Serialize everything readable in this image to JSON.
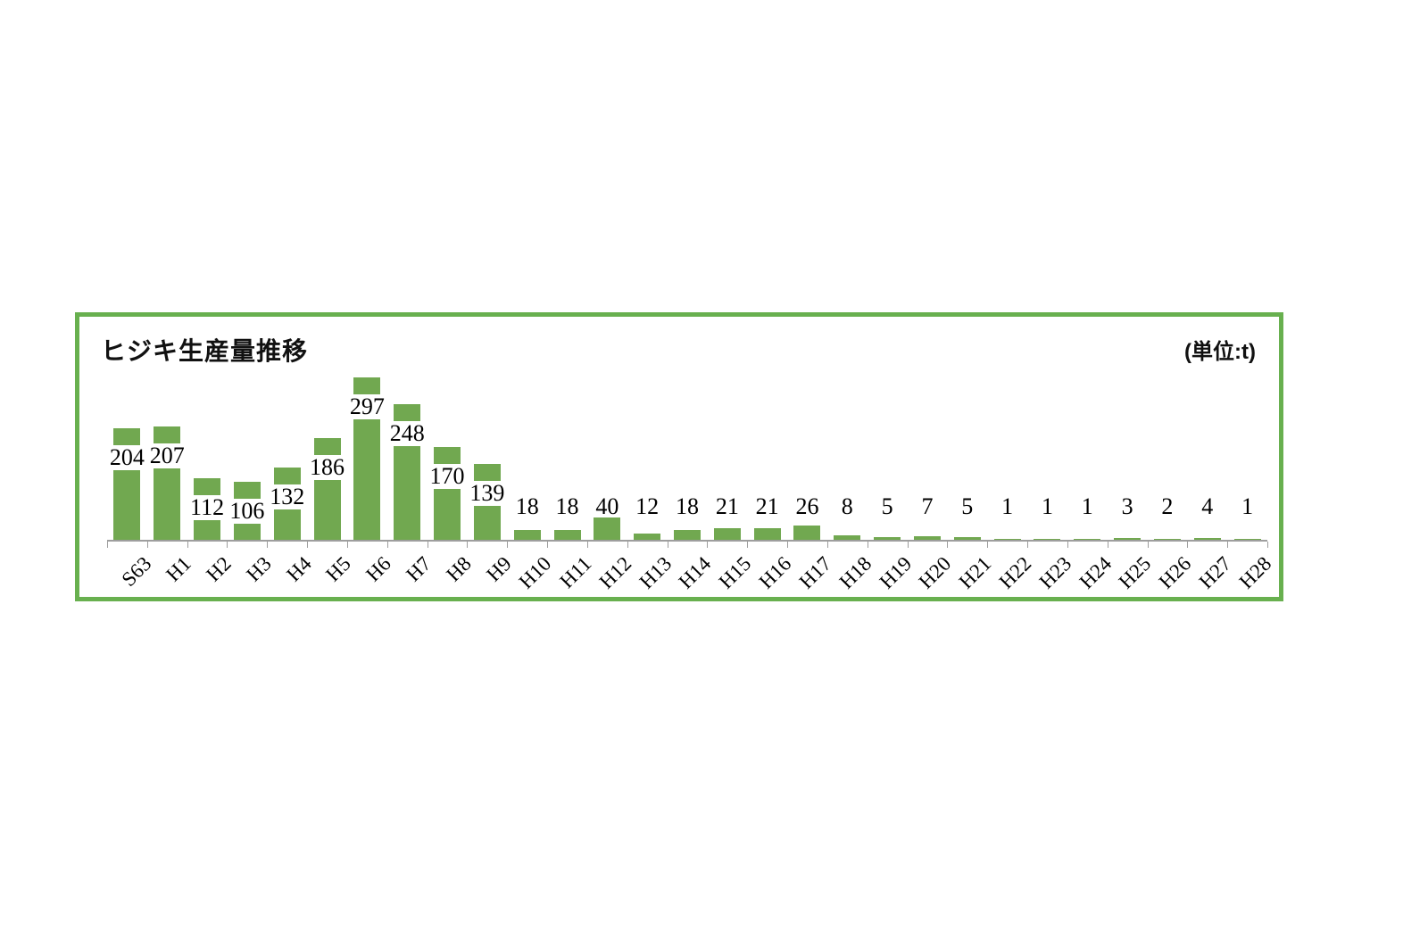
{
  "chart_data": {
    "type": "bar",
    "title": "ヒジキ生産量推移",
    "unit_label": "(単位:t)",
    "categories": [
      "S63",
      "H1",
      "H2",
      "H3",
      "H4",
      "H5",
      "H6",
      "H7",
      "H8",
      "H9",
      "H10",
      "H11",
      "H12",
      "H13",
      "H14",
      "H15",
      "H16",
      "H17",
      "H18",
      "H19",
      "H20",
      "H21",
      "H22",
      "H23",
      "H24",
      "H25",
      "H26",
      "H27",
      "H28"
    ],
    "values": [
      204,
      207,
      112,
      106,
      132,
      186,
      297,
      248,
      170,
      139,
      18,
      18,
      40,
      12,
      18,
      21,
      21,
      26,
      8,
      5,
      7,
      5,
      1,
      1,
      1,
      3,
      2,
      4,
      1
    ],
    "xlabel": "",
    "ylabel": "",
    "ylim": [
      0,
      300
    ],
    "grid": false,
    "legend": "none",
    "value_labels": "shown, inside bar top on white box for values >= 100, above bar otherwise",
    "bar_color": "#71a850",
    "frame_color": "#68b04f",
    "axis_color": "#9e9e9e",
    "text_color": "#000000"
  }
}
